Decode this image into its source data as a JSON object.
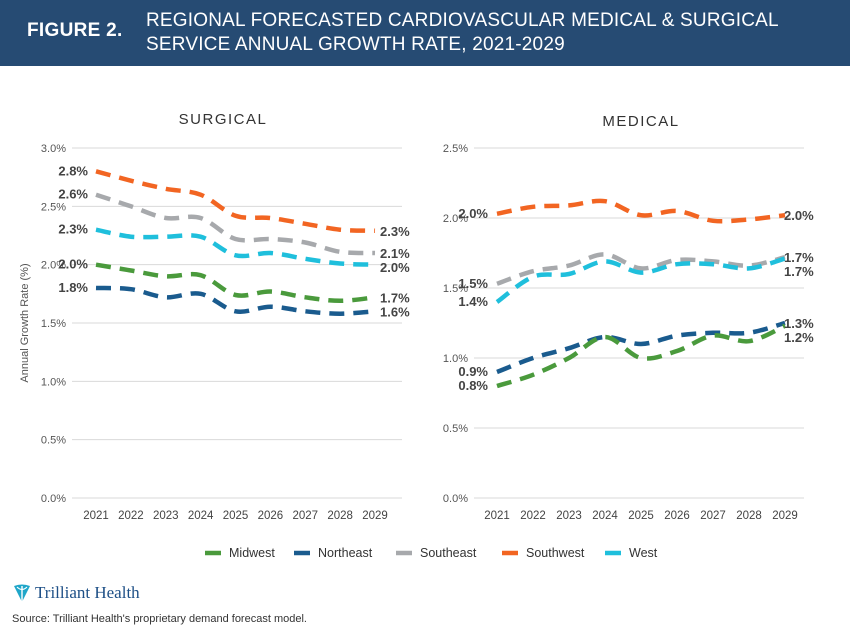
{
  "header": {
    "figure_label": "FIGURE 2.",
    "title": "REGIONAL FORECASTED CARDIOVASCULAR MEDICAL & SURGICAL SERVICE ANNUAL GROWTH RATE, 2021-2029"
  },
  "colors": {
    "header_bg": "#264b73",
    "Midwest": "#4a9a3c",
    "Northeast": "#1a5b8e",
    "Southeast": "#a7a9ac",
    "Southwest": "#f26522",
    "West": "#1fbfdc"
  },
  "chart_data": [
    {
      "type": "line",
      "title": "SURGICAL",
      "xlabel": "",
      "ylabel": "Annual Growth Rate (%)",
      "ylim": [
        0,
        3.0
      ],
      "yticks": [
        "0.0%",
        "0.5%",
        "1.0%",
        "1.5%",
        "2.0%",
        "2.5%",
        "3.0%"
      ],
      "x": [
        "2021",
        "2022",
        "2023",
        "2024",
        "2025",
        "2026",
        "2027",
        "2028",
        "2029"
      ],
      "series": [
        {
          "name": "Midwest",
          "values": [
            2.0,
            1.95,
            1.9,
            1.91,
            1.74,
            1.77,
            1.72,
            1.69,
            1.72
          ],
          "start_label": "2.0%",
          "end_label": "1.7%"
        },
        {
          "name": "Northeast",
          "values": [
            1.8,
            1.79,
            1.72,
            1.75,
            1.6,
            1.64,
            1.6,
            1.58,
            1.6
          ],
          "start_label": "1.8%",
          "end_label": "1.6%"
        },
        {
          "name": "Southeast",
          "values": [
            2.6,
            2.5,
            2.4,
            2.4,
            2.22,
            2.22,
            2.19,
            2.11,
            2.1
          ],
          "start_label": "2.6%",
          "end_label": "2.1%"
        },
        {
          "name": "Southwest",
          "values": [
            2.8,
            2.72,
            2.65,
            2.6,
            2.42,
            2.4,
            2.35,
            2.3,
            2.29
          ],
          "start_label": "2.8%",
          "end_label": "2.3%"
        },
        {
          "name": "West",
          "values": [
            2.3,
            2.24,
            2.24,
            2.24,
            2.08,
            2.1,
            2.05,
            2.01,
            2.0
          ],
          "start_label": "2.3%",
          "end_label": "2.0%"
        }
      ]
    },
    {
      "type": "line",
      "title": "MEDICAL",
      "xlabel": "",
      "ylabel": "",
      "ylim": [
        0,
        2.5
      ],
      "yticks": [
        "0.0%",
        "0.5%",
        "1.0%",
        "1.5%",
        "2.0%",
        "2.5%"
      ],
      "x": [
        "2021",
        "2022",
        "2023",
        "2024",
        "2025",
        "2026",
        "2027",
        "2028",
        "2029"
      ],
      "series": [
        {
          "name": "Midwest",
          "values": [
            0.8,
            0.88,
            1.0,
            1.15,
            1.0,
            1.05,
            1.16,
            1.12,
            1.23
          ],
          "start_label": "0.8%",
          "end_label": "1.2%"
        },
        {
          "name": "Northeast",
          "values": [
            0.9,
            1.0,
            1.07,
            1.15,
            1.1,
            1.16,
            1.18,
            1.18,
            1.25
          ],
          "start_label": "0.9%",
          "end_label": "1.3%"
        },
        {
          "name": "Southeast",
          "values": [
            1.53,
            1.62,
            1.66,
            1.74,
            1.64,
            1.7,
            1.69,
            1.66,
            1.72
          ],
          "start_label": "1.5%",
          "end_label": "1.7%"
        },
        {
          "name": "Southwest",
          "values": [
            2.03,
            2.08,
            2.09,
            2.12,
            2.02,
            2.05,
            1.98,
            1.99,
            2.02
          ],
          "start_label": "2.0%",
          "end_label": "2.0%"
        },
        {
          "name": "West",
          "values": [
            1.4,
            1.58,
            1.6,
            1.69,
            1.61,
            1.67,
            1.67,
            1.64,
            1.71
          ],
          "start_label": "1.4%",
          "end_label": "1.7%"
        }
      ]
    }
  ],
  "legend": {
    "position": "bottom",
    "items": [
      "Midwest",
      "Northeast",
      "Southeast",
      "Southwest",
      "West"
    ]
  },
  "footer": {
    "brand": "Trilliant Health",
    "source": "Source: Trilliant Health's proprietary demand forecast model."
  }
}
